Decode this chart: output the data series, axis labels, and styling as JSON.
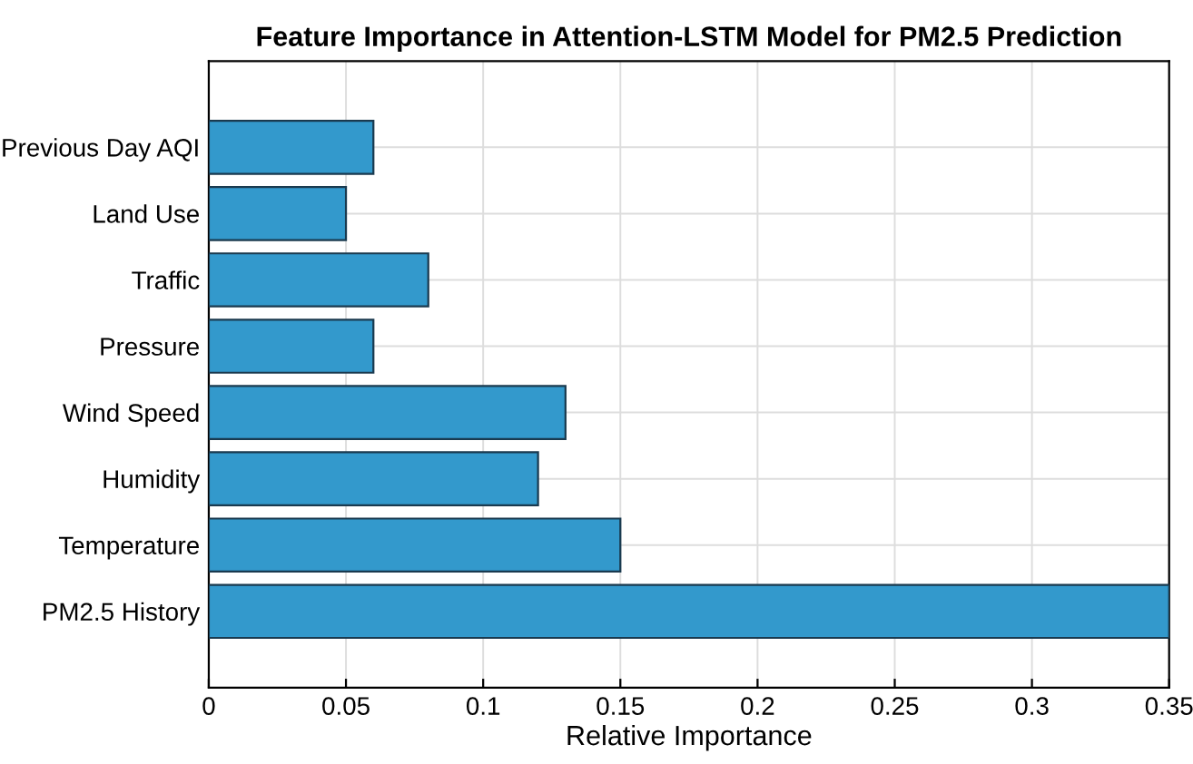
{
  "chart_data": {
    "type": "bar",
    "orientation": "horizontal",
    "title": "Feature Importance in Attention-LSTM Model for PM2.5 Prediction",
    "xlabel": "Relative Importance",
    "categories": [
      "Previous Day AQI",
      "Land Use",
      "Traffic",
      "Pressure",
      "Wind Speed",
      "Humidity",
      "Temperature",
      "PM2.5 History"
    ],
    "values": [
      0.06,
      0.05,
      0.08,
      0.06,
      0.13,
      0.12,
      0.15,
      0.35
    ],
    "color": "#3399cc",
    "xlim": [
      0,
      0.35
    ],
    "xticks": [
      0,
      0.05,
      0.1,
      0.15,
      0.2,
      0.25,
      0.3,
      0.35
    ],
    "grid": true
  }
}
